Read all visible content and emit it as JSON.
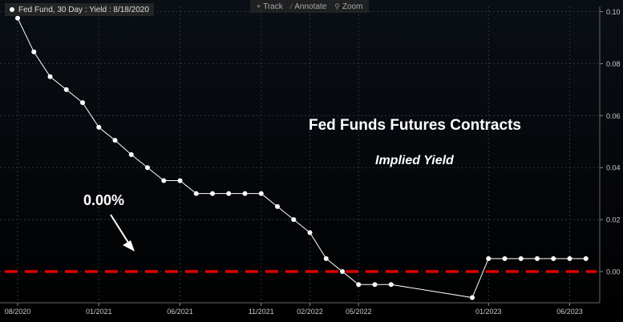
{
  "legend": {
    "label": "Fed Fund, 30 Day : Yield : 8/18/2020",
    "icon": "white-dot"
  },
  "toolbar": [
    {
      "label": "Track",
      "icon": "crosshair-icon"
    },
    {
      "label": "Annotate",
      "icon": "pencil-icon"
    },
    {
      "label": "Zoom",
      "icon": "magnifier-icon"
    }
  ],
  "annotations": {
    "title": "Fed Funds Futures Contracts",
    "subtitle": "Implied Yield",
    "zero_callout": "0.00%"
  },
  "colors": {
    "background": "#000000",
    "series": "#ffffff",
    "zero_line": "#e00000",
    "grid": "#2e3440",
    "axis_text": "#c8c8c8"
  },
  "chart_data": {
    "type": "line",
    "x_ticks": [
      "08/2020",
      "01/2021",
      "06/2021",
      "11/2021",
      "02/2022",
      "05/2022",
      "01/2023",
      "06/2023"
    ],
    "y_ticks": [
      "0.10",
      "0.08",
      "0.06",
      "0.04",
      "0.02",
      "0.00"
    ],
    "ylim": [
      -0.012,
      0.102
    ],
    "grid": true,
    "series": [
      {
        "x": [
          "2020-08",
          "2020-09",
          "2020-10",
          "2020-11",
          "2020-12",
          "2021-01",
          "2021-02",
          "2021-03",
          "2021-04",
          "2021-05",
          "2021-06",
          "2021-07",
          "2021-08",
          "2021-09",
          "2021-10",
          "2021-11",
          "2021-12",
          "2022-01",
          "2022-02",
          "2022-03",
          "2022-04",
          "2022-05",
          "2022-06",
          "2022-07",
          "2022-12",
          "2023-01",
          "2023-02",
          "2023-03",
          "2023-04",
          "2023-05",
          "2023-06",
          "2023-07"
        ],
        "values": [
          0.0975,
          0.0845,
          0.075,
          0.07,
          0.065,
          0.0555,
          0.0505,
          0.045,
          0.04,
          0.035,
          0.035,
          0.03,
          0.03,
          0.03,
          0.03,
          0.03,
          0.025,
          0.02,
          0.015,
          0.005,
          0,
          -0.005,
          -0.005,
          -0.005,
          -0.01,
          0.005,
          0.005,
          0.005,
          0.005,
          0.005,
          0.005,
          0.005
        ]
      }
    ],
    "reference_line": {
      "y": 0.0,
      "style": "dashed",
      "color": "#e00000"
    }
  }
}
